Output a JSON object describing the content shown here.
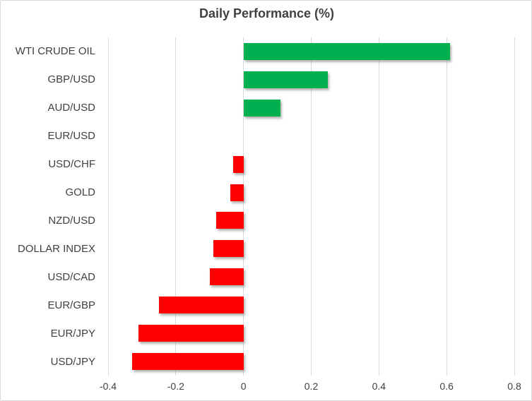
{
  "chart_data": {
    "type": "bar",
    "orientation": "horizontal",
    "title": "Daily Performance (%)",
    "categories": [
      "WTI CRUDE OIL",
      "GBP/USD",
      "AUD/USD",
      "EUR/USD",
      "USD/CHF",
      "GOLD",
      "NZD/USD",
      "DOLLAR INDEX",
      "USD/CAD",
      "EUR/GBP",
      "EUR/JPY",
      "USD/JPY"
    ],
    "values": [
      0.61,
      0.25,
      0.11,
      0.0,
      -0.03,
      -0.04,
      -0.08,
      -0.09,
      -0.1,
      -0.25,
      -0.31,
      -0.33
    ],
    "xlabel": "",
    "ylabel": "",
    "xlim": [
      -0.4,
      0.8
    ],
    "x_ticks": [
      -0.4,
      -0.2,
      0,
      0.2,
      0.4,
      0.6,
      0.8
    ],
    "x_tick_labels": [
      "-0.4",
      "-0.2",
      "0",
      "0.2",
      "0.4",
      "0.6",
      "0.8"
    ],
    "grid": "vertical-on",
    "legend": "none",
    "colors": {
      "positive": "#00B050",
      "negative": "#FF0000",
      "gridline": "#D9D9D9",
      "text": "#404040",
      "border": "#D9D9D9",
      "background": "#FFFFFF"
    }
  }
}
